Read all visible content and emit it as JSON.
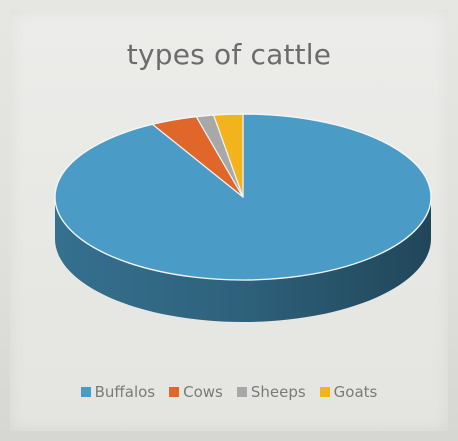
{
  "chart_data": {
    "type": "pie",
    "title": "types of cattle",
    "categories": [
      "Buffalos",
      "Cows",
      "Sheeps",
      "Goats"
    ],
    "values": [
      92,
      4,
      1.5,
      2.5
    ],
    "colors": [
      "#4a9cc6",
      "#e0662a",
      "#a8a8a8",
      "#f2b31c"
    ],
    "legend": "bottom",
    "style": "3d"
  }
}
